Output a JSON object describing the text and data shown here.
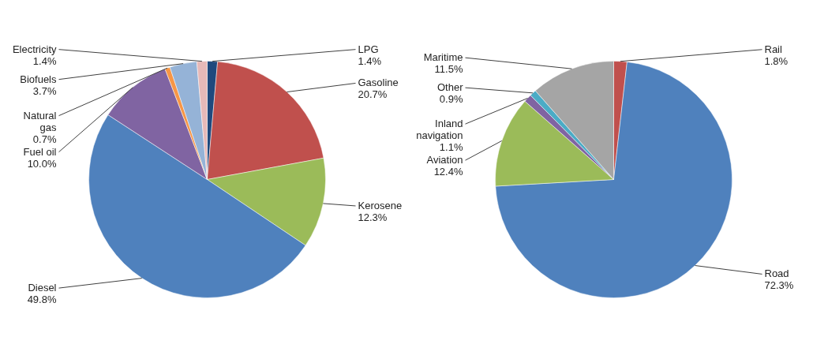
{
  "chart_data": [
    {
      "type": "pie",
      "categories": [
        "LPG",
        "Gasoline",
        "Kerosene",
        "Diesel",
        "Fuel oil",
        "Natural gas",
        "Biofuels",
        "Electricity"
      ],
      "values": [
        1.4,
        20.7,
        12.3,
        49.8,
        10.0,
        0.7,
        3.7,
        1.4
      ],
      "value_labels": [
        "1.4%",
        "20.7%",
        "12.3%",
        "49.8%",
        "10.0%",
        "0.7%",
        "3.7%",
        "1.4%"
      ],
      "colors": [
        "#1f497d",
        "#c0504d",
        "#9bbb59",
        "#4f81bd",
        "#8064a2",
        "#f79646",
        "#95b3d7",
        "#e6b9b8"
      ]
    },
    {
      "type": "pie",
      "categories": [
        "Rail",
        "Road",
        "Aviation",
        "Inland navigation",
        "Other",
        "Maritime"
      ],
      "values": [
        1.8,
        72.3,
        12.4,
        1.1,
        0.9,
        11.5
      ],
      "value_labels": [
        "1.8%",
        "72.3%",
        "12.4%",
        "1.1%",
        "0.9%",
        "11.5%"
      ],
      "colors": [
        "#c0504d",
        "#4f81bd",
        "#9bbb59",
        "#8064a2",
        "#4bacc6",
        "#a5a5a5"
      ]
    }
  ]
}
